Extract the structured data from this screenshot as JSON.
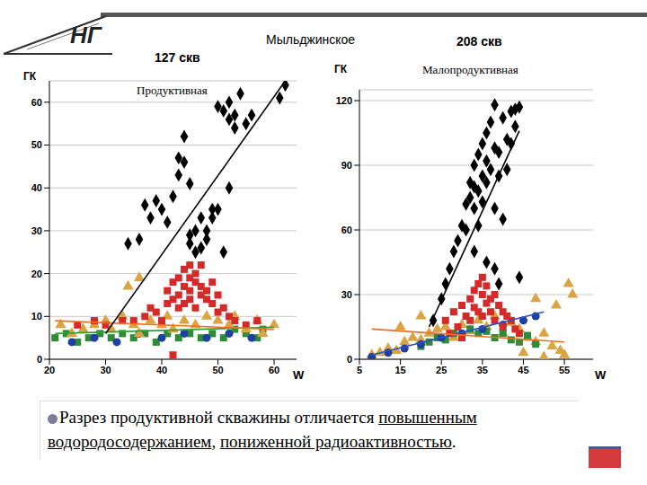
{
  "header": {
    "logo": "НГ",
    "title": "Мыльджинское"
  },
  "chart_data": [
    {
      "type": "scatter",
      "title": "127 скв",
      "subtitle": "Продуктивная",
      "x_label": "W",
      "y_label": "ГК",
      "xlim": [
        20,
        64
      ],
      "ylim": [
        0,
        65
      ],
      "xticks": [
        20,
        30,
        40,
        50,
        60
      ],
      "yticks": [
        0,
        10,
        20,
        30,
        40,
        50,
        60
      ],
      "grid": true,
      "series": [
        {
          "type": "scatter",
          "color": "#2e8b3a",
          "marker": "square",
          "x": [
            21,
            23,
            25,
            27,
            29,
            31,
            33,
            35,
            37,
            39,
            41,
            43,
            45,
            47,
            49,
            51,
            53,
            55,
            57,
            58
          ],
          "values": [
            5,
            6,
            4,
            5,
            6,
            5,
            6,
            5,
            6,
            4,
            6,
            5,
            6,
            5,
            6,
            5,
            7,
            6,
            5,
            7
          ]
        },
        {
          "type": "scatter",
          "color": "#2040a0",
          "marker": "circle",
          "x": [
            24,
            28,
            32,
            36,
            40,
            44,
            48,
            52,
            56
          ],
          "values": [
            4,
            5,
            4,
            6,
            5,
            6,
            5,
            6,
            5
          ]
        },
        {
          "type": "scatter",
          "color": "#d9a441",
          "marker": "triangle",
          "x": [
            22,
            24,
            26,
            28,
            30,
            31,
            33,
            35,
            36,
            38,
            40,
            41,
            42,
            44,
            46,
            48,
            50,
            52,
            53,
            55,
            57,
            58,
            60,
            36,
            34
          ],
          "values": [
            8,
            6,
            7,
            8,
            9,
            7,
            10,
            8,
            6,
            9,
            8,
            10,
            7,
            9,
            8,
            10,
            9,
            8,
            10,
            7,
            9,
            6,
            8,
            19,
            17
          ]
        },
        {
          "type": "scatter",
          "color": "#d42a2a",
          "marker": "square",
          "x": [
            35,
            37,
            38,
            39,
            40,
            41,
            41,
            42,
            42,
            43,
            43,
            43,
            44,
            44,
            44,
            45,
            45,
            45,
            45,
            46,
            46,
            46,
            47,
            47,
            47,
            48,
            48,
            49,
            49,
            50,
            50,
            51,
            52,
            53,
            55,
            57,
            30,
            33,
            28,
            25,
            42
          ],
          "values": [
            9,
            10,
            12,
            11,
            9,
            13,
            16,
            14,
            18,
            12,
            15,
            19,
            17,
            21,
            13,
            16,
            19,
            22,
            14,
            18,
            20,
            12,
            15,
            17,
            22,
            16,
            14,
            13,
            18,
            11,
            15,
            12,
            10,
            9,
            8,
            9,
            8,
            9,
            9,
            8,
            1
          ]
        },
        {
          "type": "scatter",
          "color": "#000000",
          "marker": "diamond",
          "x": [
            34,
            36,
            37,
            38,
            39,
            40,
            41,
            42,
            43,
            43,
            44,
            44,
            45,
            45,
            45,
            46,
            46,
            47,
            47,
            48,
            48,
            49,
            49,
            50,
            50,
            51,
            51,
            52,
            52,
            52,
            53,
            53,
            55,
            56,
            54,
            61,
            62
          ],
          "values": [
            27,
            28,
            36,
            33,
            37,
            35,
            32,
            38,
            43,
            47,
            46,
            52,
            41,
            29,
            27,
            30,
            25,
            26,
            33,
            30,
            28,
            35,
            33,
            35,
            59,
            58,
            25,
            60,
            56,
            40,
            57,
            54,
            55,
            57,
            62,
            61,
            64
          ]
        },
        {
          "type": "line",
          "color": "#30a030",
          "line_style": "solid",
          "x": [
            21,
            60
          ],
          "values": [
            6,
            7.5
          ]
        },
        {
          "type": "line",
          "color": "#f07020",
          "line_style": "solid",
          "x": [
            21,
            60
          ],
          "values": [
            9,
            7
          ]
        },
        {
          "type": "line",
          "color": "#000000",
          "line_style": "solid",
          "x": [
            30,
            62
          ],
          "values": [
            6,
            65
          ]
        }
      ]
    },
    {
      "type": "scatter",
      "title": "208 скв",
      "subtitle": "Малопродуктивная",
      "x_label": "W",
      "y_label": "ГК",
      "xlim": [
        5,
        62
      ],
      "ylim": [
        0,
        125
      ],
      "xticks": [
        5,
        15,
        25,
        35,
        45,
        55
      ],
      "yticks": [
        0,
        30,
        60,
        90,
        120
      ],
      "grid": true,
      "series": [
        {
          "type": "scatter",
          "color": "#d9a441",
          "marker": "triangle",
          "x": [
            8,
            10,
            12,
            14,
            16,
            18,
            20,
            22,
            24,
            26,
            28,
            30,
            32,
            34,
            36,
            38,
            40,
            42,
            44,
            46,
            48,
            50,
            52,
            54,
            55,
            53,
            56,
            57,
            48,
            20,
            15,
            45,
            50
          ],
          "values": [
            2,
            3,
            5,
            4,
            8,
            10,
            9,
            12,
            14,
            15,
            10,
            16,
            13,
            18,
            15,
            20,
            12,
            17,
            14,
            10,
            8,
            12,
            6,
            4,
            2,
            25,
            35,
            30,
            28,
            20,
            15,
            3,
            1
          ]
        },
        {
          "type": "scatter",
          "color": "#2e8b3a",
          "marker": "square",
          "x": [
            20,
            22,
            24,
            26,
            28,
            30,
            32,
            34,
            36,
            38,
            40,
            42,
            44,
            46,
            48
          ],
          "values": [
            6,
            8,
            10,
            9,
            12,
            11,
            14,
            12,
            13,
            10,
            12,
            9,
            8,
            11,
            7
          ]
        },
        {
          "type": "scatter",
          "color": "#2040a0",
          "marker": "circle",
          "x": [
            8,
            12,
            16,
            20,
            25,
            30,
            35,
            40,
            45,
            48
          ],
          "values": [
            1,
            3,
            5,
            7,
            10,
            12,
            14,
            16,
            18,
            20
          ]
        },
        {
          "type": "scatter",
          "color": "#d42a2a",
          "marker": "square",
          "x": [
            26,
            28,
            29,
            30,
            31,
            32,
            32,
            33,
            33,
            34,
            34,
            35,
            35,
            35,
            36,
            36,
            37,
            37,
            38,
            38,
            39,
            40,
            40,
            41,
            42,
            43,
            44,
            27,
            30
          ],
          "values": [
            18,
            22,
            15,
            25,
            20,
            28,
            18,
            32,
            24,
            35,
            22,
            38,
            30,
            20,
            34,
            26,
            28,
            22,
            30,
            18,
            25,
            22,
            15,
            20,
            18,
            14,
            12,
            12,
            10
          ]
        },
        {
          "type": "scatter",
          "color": "#000000",
          "marker": "diamond",
          "x": [
            23,
            25,
            26,
            27,
            28,
            29,
            30,
            31,
            31,
            32,
            32,
            33,
            33,
            33,
            34,
            34,
            34,
            35,
            35,
            35,
            36,
            36,
            36,
            37,
            37,
            38,
            38,
            38,
            39,
            39,
            40,
            40,
            41,
            41,
            42,
            42,
            43,
            43,
            44,
            36,
            38,
            33,
            44,
            39
          ],
          "values": [
            18,
            28,
            35,
            42,
            50,
            55,
            62,
            60,
            72,
            75,
            82,
            70,
            80,
            90,
            78,
            95,
            62,
            85,
            100,
            73,
            82,
            105,
            92,
            110,
            88,
            98,
            118,
            70,
            85,
            96,
            112,
            65,
            102,
            88,
            115,
            100,
            108,
            116,
            117,
            45,
            42,
            50,
            38,
            35
          ]
        },
        {
          "type": "line",
          "color": "#3050c0",
          "line_style": "solid",
          "x": [
            8,
            50
          ],
          "values": [
            2,
            22
          ]
        },
        {
          "type": "line",
          "color": "#f07020",
          "line_style": "solid",
          "x": [
            8,
            55
          ],
          "values": [
            14,
            8
          ]
        },
        {
          "type": "line",
          "color": "#000000",
          "line_style": "solid",
          "x": [
            22,
            44
          ],
          "values": [
            15,
            106
          ]
        }
      ]
    }
  ],
  "caption": [
    {
      "text": "Разрез продуктивной скважины отличается ",
      "underline": false
    },
    {
      "text": "повышенным водородосодержанием",
      "underline": true
    },
    {
      "text": ", ",
      "underline": false
    },
    {
      "text": "пониженной радиоактивностью",
      "underline": true
    },
    {
      "text": ".",
      "underline": false
    }
  ]
}
